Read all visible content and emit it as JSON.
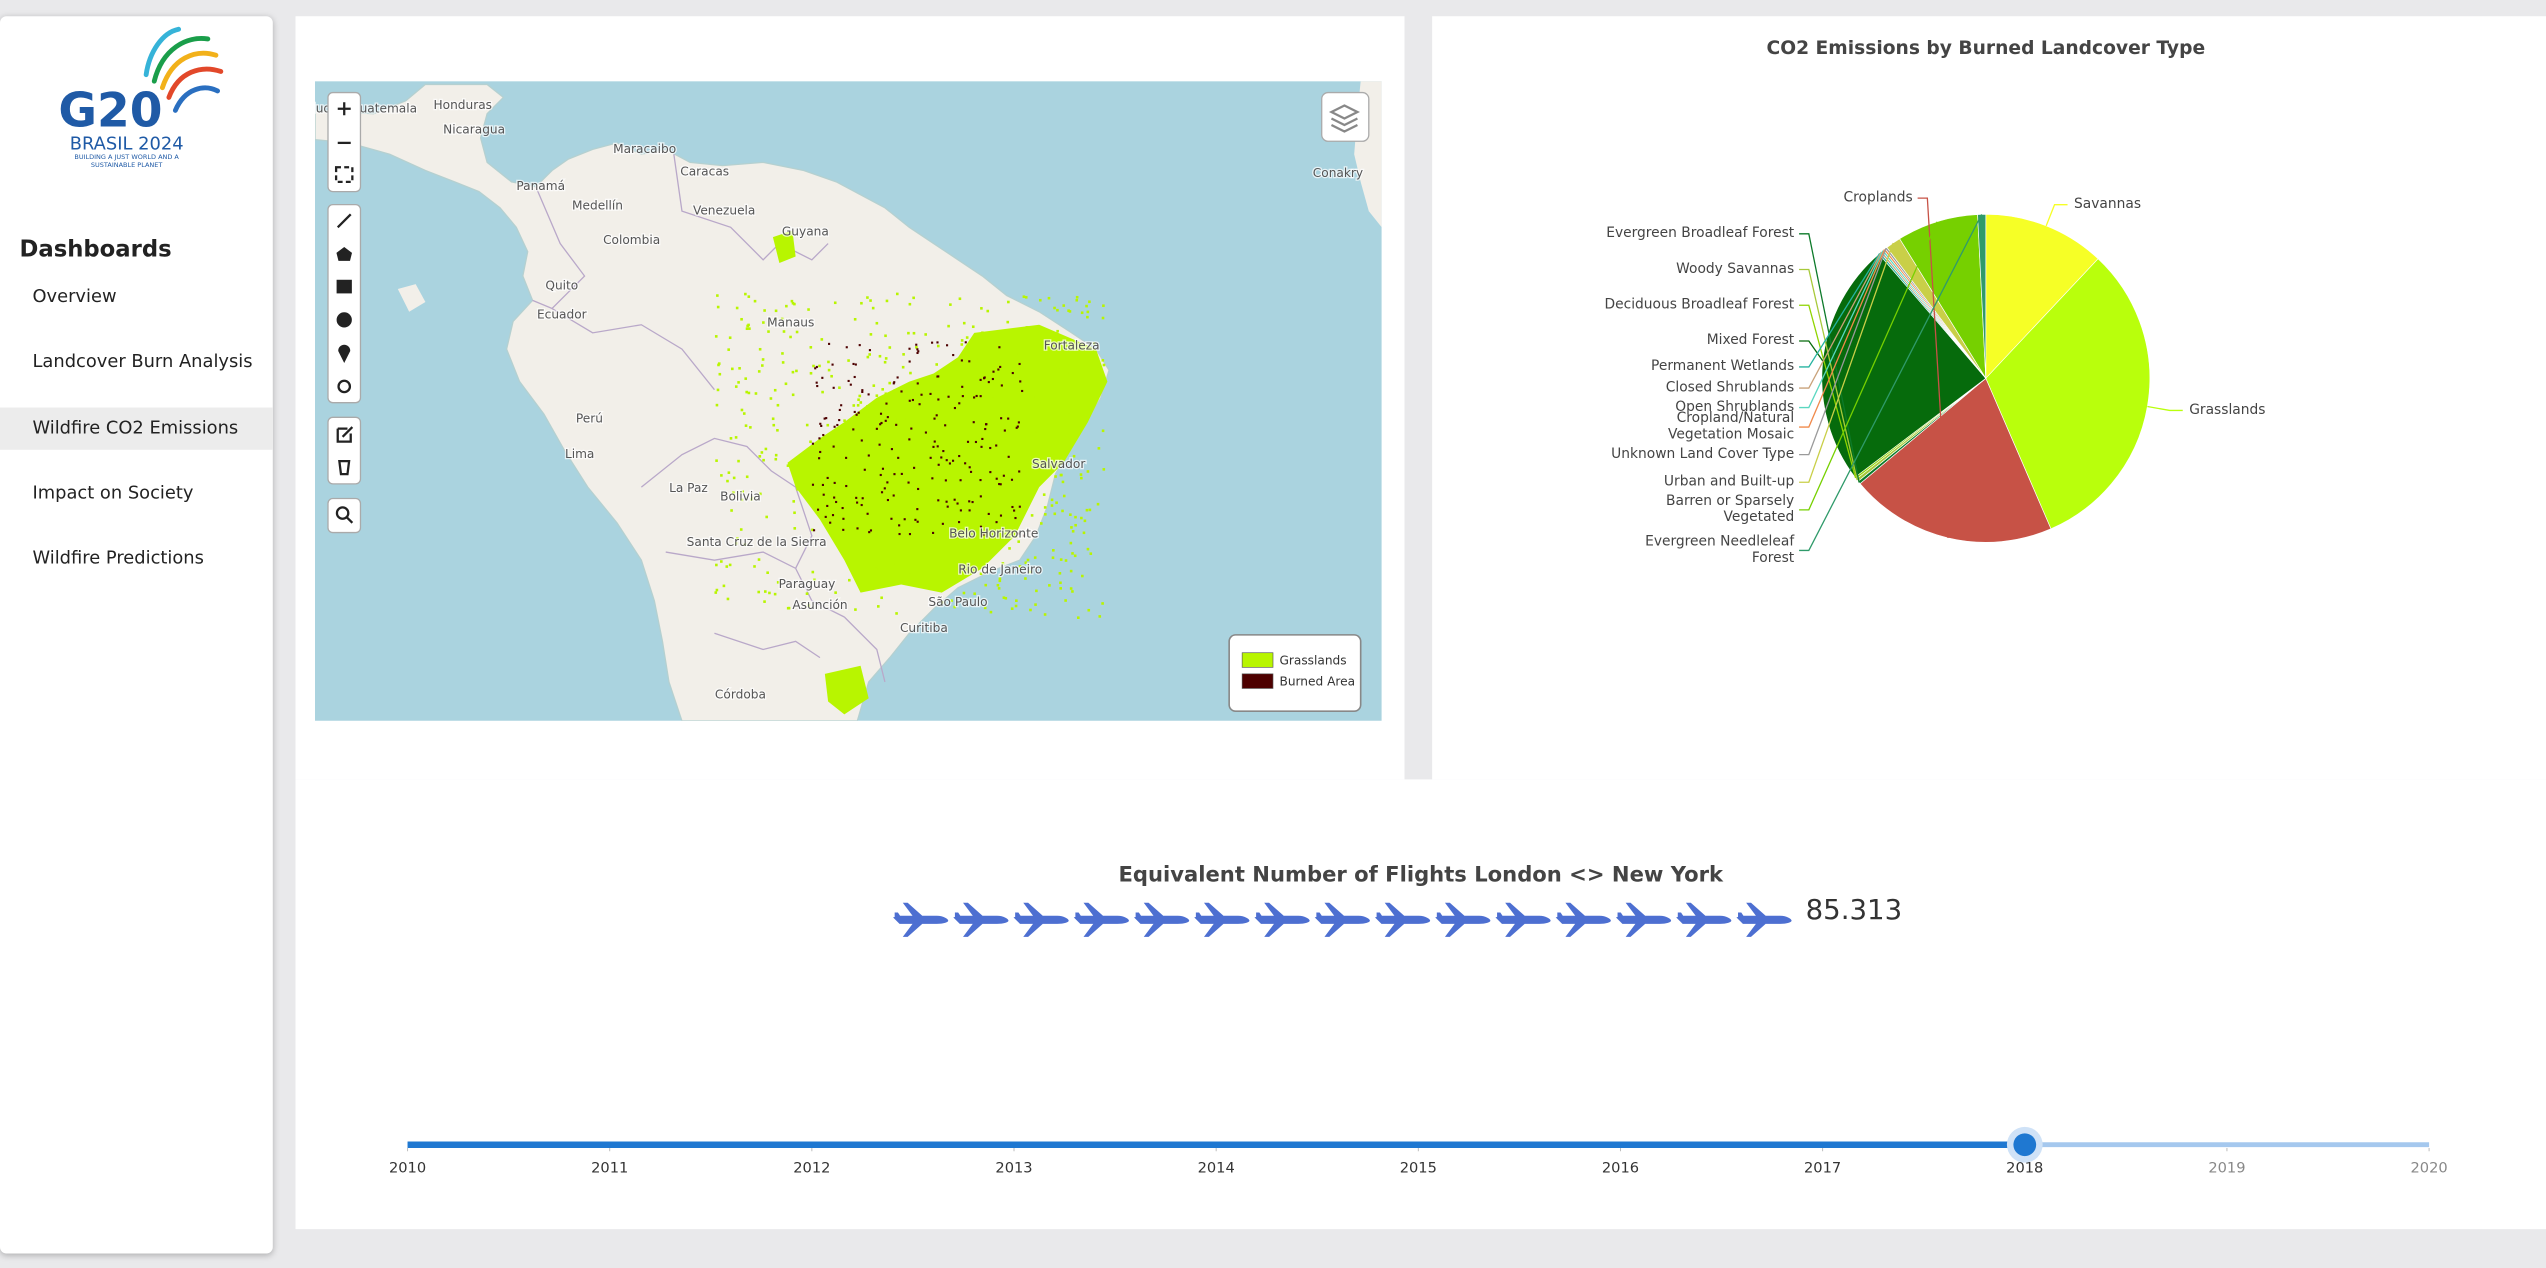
{
  "sidebar": {
    "logo": {
      "mark": "G20",
      "title": "BRASIL 2024",
      "tagline": "BUILDING A JUST WORLD AND A SUSTAINABLE PLANET"
    },
    "heading": "Dashboards",
    "nav": [
      "Overview",
      "Landcover Burn Analysis",
      "Wildfire CO2 Emissions",
      "Impact on Society",
      "Wildfire Predictions"
    ],
    "active": 2
  },
  "map": {
    "places": [
      "Ciudad Guatemala",
      "Honduras",
      "Nicaragua",
      "Maracaibo",
      "Caracas",
      "Panamá",
      "Medellín",
      "Venezuela",
      "Colombia",
      "Guyana",
      "Quito",
      "Ecuador",
      "Manaus",
      "Perú",
      "Lima",
      "La Paz",
      "Bolivia",
      "Santa Cruz de la Sierra",
      "Paraguay",
      "Asunción",
      "São Paulo",
      "Curitiba",
      "Rio de Janeiro",
      "Belo Horizonte",
      "Salvador",
      "Fortaleza",
      "Córdoba",
      "Conakry"
    ],
    "legend": [
      {
        "label": "Grasslands",
        "color": "#b8f500"
      },
      {
        "label": "Burned Area",
        "color": "#4d0000"
      }
    ]
  },
  "chart_data": {
    "type": "pie",
    "title": "CO2 Emissions by Burned Landcover Type",
    "categories": [
      "Savannas",
      "Grasslands",
      "Croplands",
      "Evergreen Broadleaf Forest",
      "Woody Savannas",
      "Deciduous Broadleaf Forest",
      "Mixed Forest",
      "Permanent Wetlands",
      "Closed Shrublands",
      "Open Shrublands",
      "Cropland/Natural Vegetation Mosaic",
      "Unknown Land Cover Type",
      "Urban and Built-up",
      "Barren or Sparsely Vegetated",
      "Evergreen Needleleaf Forest"
    ],
    "values": [
      12,
      31.5,
      20.4,
      0.3,
      0.3,
      0.2,
      24,
      0.2,
      0.2,
      0.2,
      0.2,
      0.2,
      1.5,
      8,
      0.8
    ],
    "colors": [
      "#f6ff26",
      "#b9ff0c",
      "#c75246",
      "#0d7a2a",
      "#a7c93a",
      "#8fd400",
      "#066b0c",
      "#26b3a0",
      "#c9a27a",
      "#5ad7c0",
      "#f08a4b",
      "#9a9a9a",
      "#c9cf48",
      "#76d000",
      "#2f9a6a"
    ]
  },
  "flights": {
    "title": "Equivalent Number of Flights London <> New York",
    "value": 85.313
  },
  "slider": {
    "years": [
      2010,
      2011,
      2012,
      2013,
      2014,
      2015,
      2016,
      2017,
      2018,
      2019,
      2020
    ],
    "selected": 2018
  }
}
